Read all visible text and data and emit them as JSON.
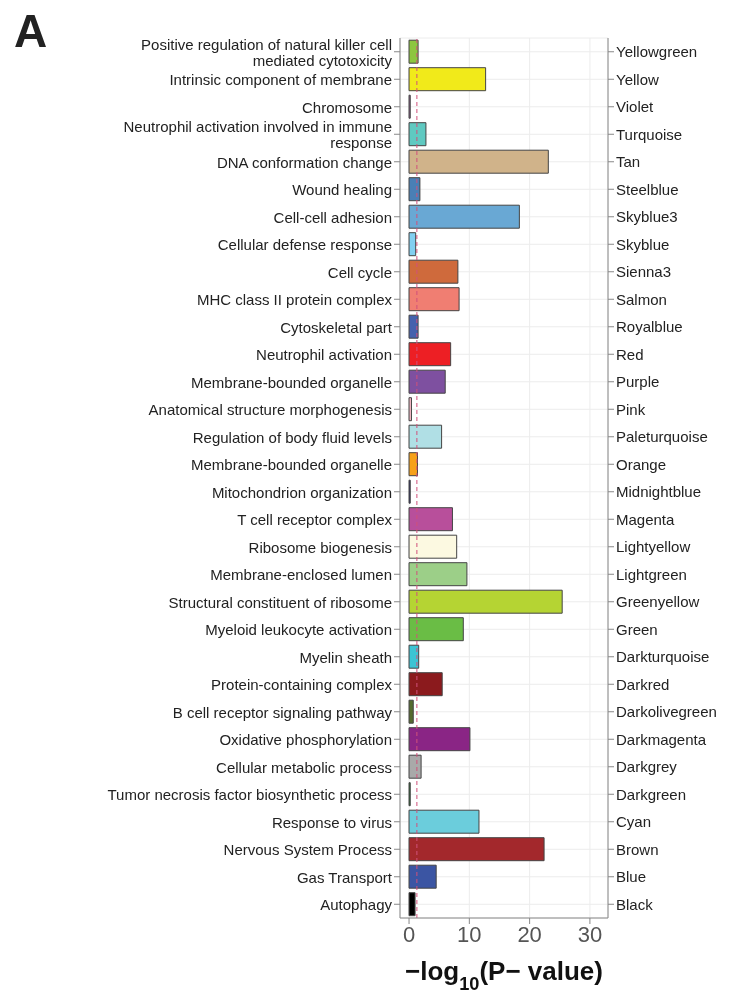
{
  "chart_data": {
    "type": "bar",
    "orientation": "horizontal",
    "categories": [
      "Positive regulation of natural killer cell mediated cytotoxicity",
      "Intrinsic component of membrane",
      "Chromosome",
      "Neutrophil activation involved in immune response",
      "DNA conformation change",
      "Wound healing",
      "Cell-cell adhesion",
      "Cellular defense response",
      "Cell cycle",
      "MHC class II protein complex",
      "Cytoskeletal part",
      "Neutrophil activation",
      "Membrane-bounded organelle",
      "Anatomical structure morphogenesis",
      "Regulation of body fluid levels",
      "Membrane-bounded organelle",
      "Mitochondrion organization",
      "T cell receptor complex",
      "Ribosome biogenesis",
      "Membrane-enclosed lumen",
      "Structural constituent of ribosome",
      "Myeloid leukocyte activation",
      "Myelin sheath",
      "Protein-containing complex",
      "B cell receptor signaling pathway",
      "Oxidative phosphorylation",
      "Cellular metabolic process",
      "Tumor necrosis factor biosynthetic process",
      "Response to virus",
      "Nervous System Process",
      "Gas Transport",
      "Autophagy"
    ],
    "y2_categories": [
      "Yellowgreen",
      "Yellow",
      "Violet",
      "Turquoise",
      "Tan",
      "Steelblue",
      "Skyblue3",
      "Skyblue",
      "Sienna3",
      "Salmon",
      "Royalblue",
      "Red",
      "Purple",
      "Pink",
      "Paleturquoise",
      "Orange",
      "Midnightblue",
      "Magenta",
      "Lightyellow",
      "Lightgreen",
      "Greenyellow",
      "Green",
      "Darkturquoise",
      "Darkred",
      "Darkolivegreen",
      "Darkmagenta",
      "Darkgrey",
      "Darkgreen",
      "Cyan",
      "Brown",
      "Blue",
      "Black"
    ],
    "values": [
      1.5,
      12.7,
      0.2,
      2.8,
      23.1,
      1.8,
      18.3,
      1.1,
      8.1,
      8.3,
      1.5,
      6.9,
      6.0,
      0.4,
      5.4,
      1.4,
      0.2,
      7.2,
      7.9,
      9.6,
      25.4,
      9.0,
      1.6,
      5.5,
      0.7,
      10.1,
      2.0,
      0.2,
      11.6,
      22.4,
      4.5,
      1.0
    ],
    "colors": [
      "#8dc63f",
      "#f1ea1a",
      "#8c5c8c",
      "#5fc9c1",
      "#d0b38a",
      "#4a7fb5",
      "#69a8d4",
      "#82cff0",
      "#cf6a3c",
      "#f07e72",
      "#4561ad",
      "#ed1f24",
      "#7e50a0",
      "#f7b8c6",
      "#b0dfe5",
      "#f7a11a",
      "#23255e",
      "#b84f9b",
      "#fcf9e1",
      "#9ccf88",
      "#b5d433",
      "#6abd45",
      "#3cc4d4",
      "#8b1a1d",
      "#566b2f",
      "#8a2585",
      "#a9a9a9",
      "#1f5f2a",
      "#6bcddc",
      "#a3282c",
      "#3b55a3",
      "#000000"
    ],
    "xlim": [
      -1.5,
      33
    ],
    "xticks": [
      0,
      10,
      20,
      30
    ],
    "xlabel": "−log$_{10}$(P− value)",
    "grid": true,
    "ref_lines": [
      {
        "axis": "x",
        "value": 1.3,
        "color": "#d0507a",
        "line_style": "dashed"
      }
    ],
    "annotations": [
      "A"
    ]
  }
}
